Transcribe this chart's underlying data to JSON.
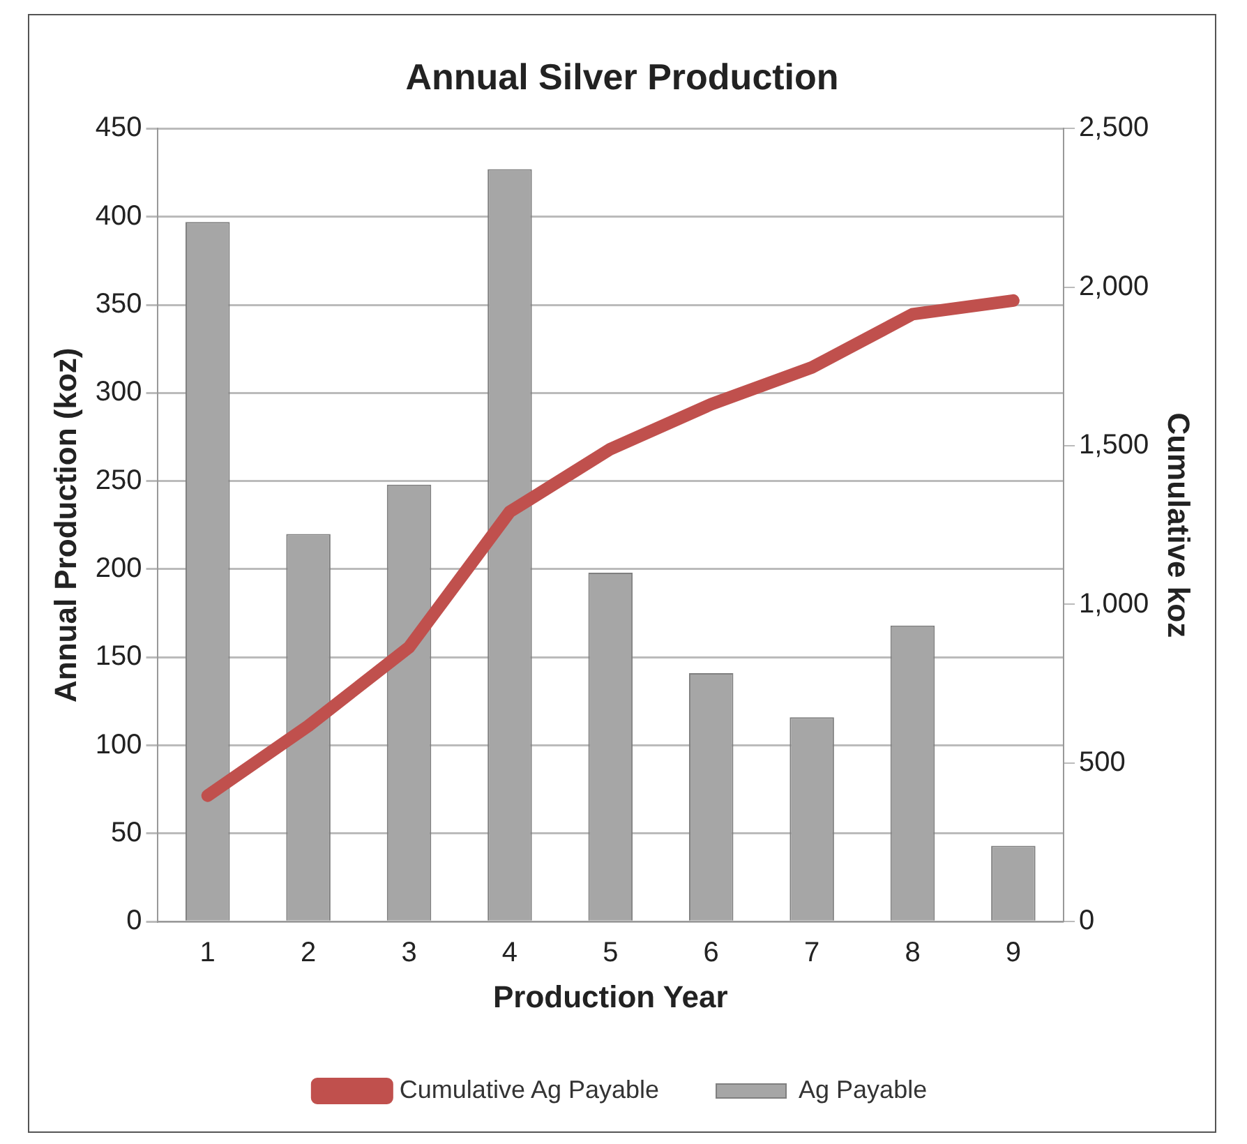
{
  "chart_data": {
    "type": "bar",
    "title": "Annual Silver Production",
    "xlabel": "Production Year",
    "ylabel": "Annual Production (koz)",
    "y2label": "Cumulative koz",
    "categories": [
      "1",
      "2",
      "3",
      "4",
      "5",
      "6",
      "7",
      "8",
      "9"
    ],
    "series": [
      {
        "name": "Ag Payable",
        "color": "#a6a6a6",
        "values": [
          397,
          220,
          248,
          427,
          198,
          141,
          116,
          168,
          43
        ]
      },
      {
        "name": "Cumulative Ag Payable",
        "type": "line",
        "axis": "y2",
        "color": "#c0504d",
        "values": [
          397,
          617,
          865,
          1292,
          1490,
          1631,
          1747,
          1915,
          1958
        ]
      }
    ],
    "ylim": [
      0,
      450
    ],
    "yticks": [
      0,
      50,
      100,
      150,
      200,
      250,
      300,
      350,
      400,
      450
    ],
    "y2lim": [
      0,
      2500
    ],
    "y2ticks": [
      {
        "value": 0,
        "label": "0"
      },
      {
        "value": 500,
        "label": "500"
      },
      {
        "value": 1000,
        "label": "1,000"
      },
      {
        "value": 1500,
        "label": "1,500"
      },
      {
        "value": 2000,
        "label": "2,000"
      },
      {
        "value": 2500,
        "label": "2,500"
      }
    ],
    "grid": "y",
    "legend": "bottom",
    "marker": "none"
  }
}
